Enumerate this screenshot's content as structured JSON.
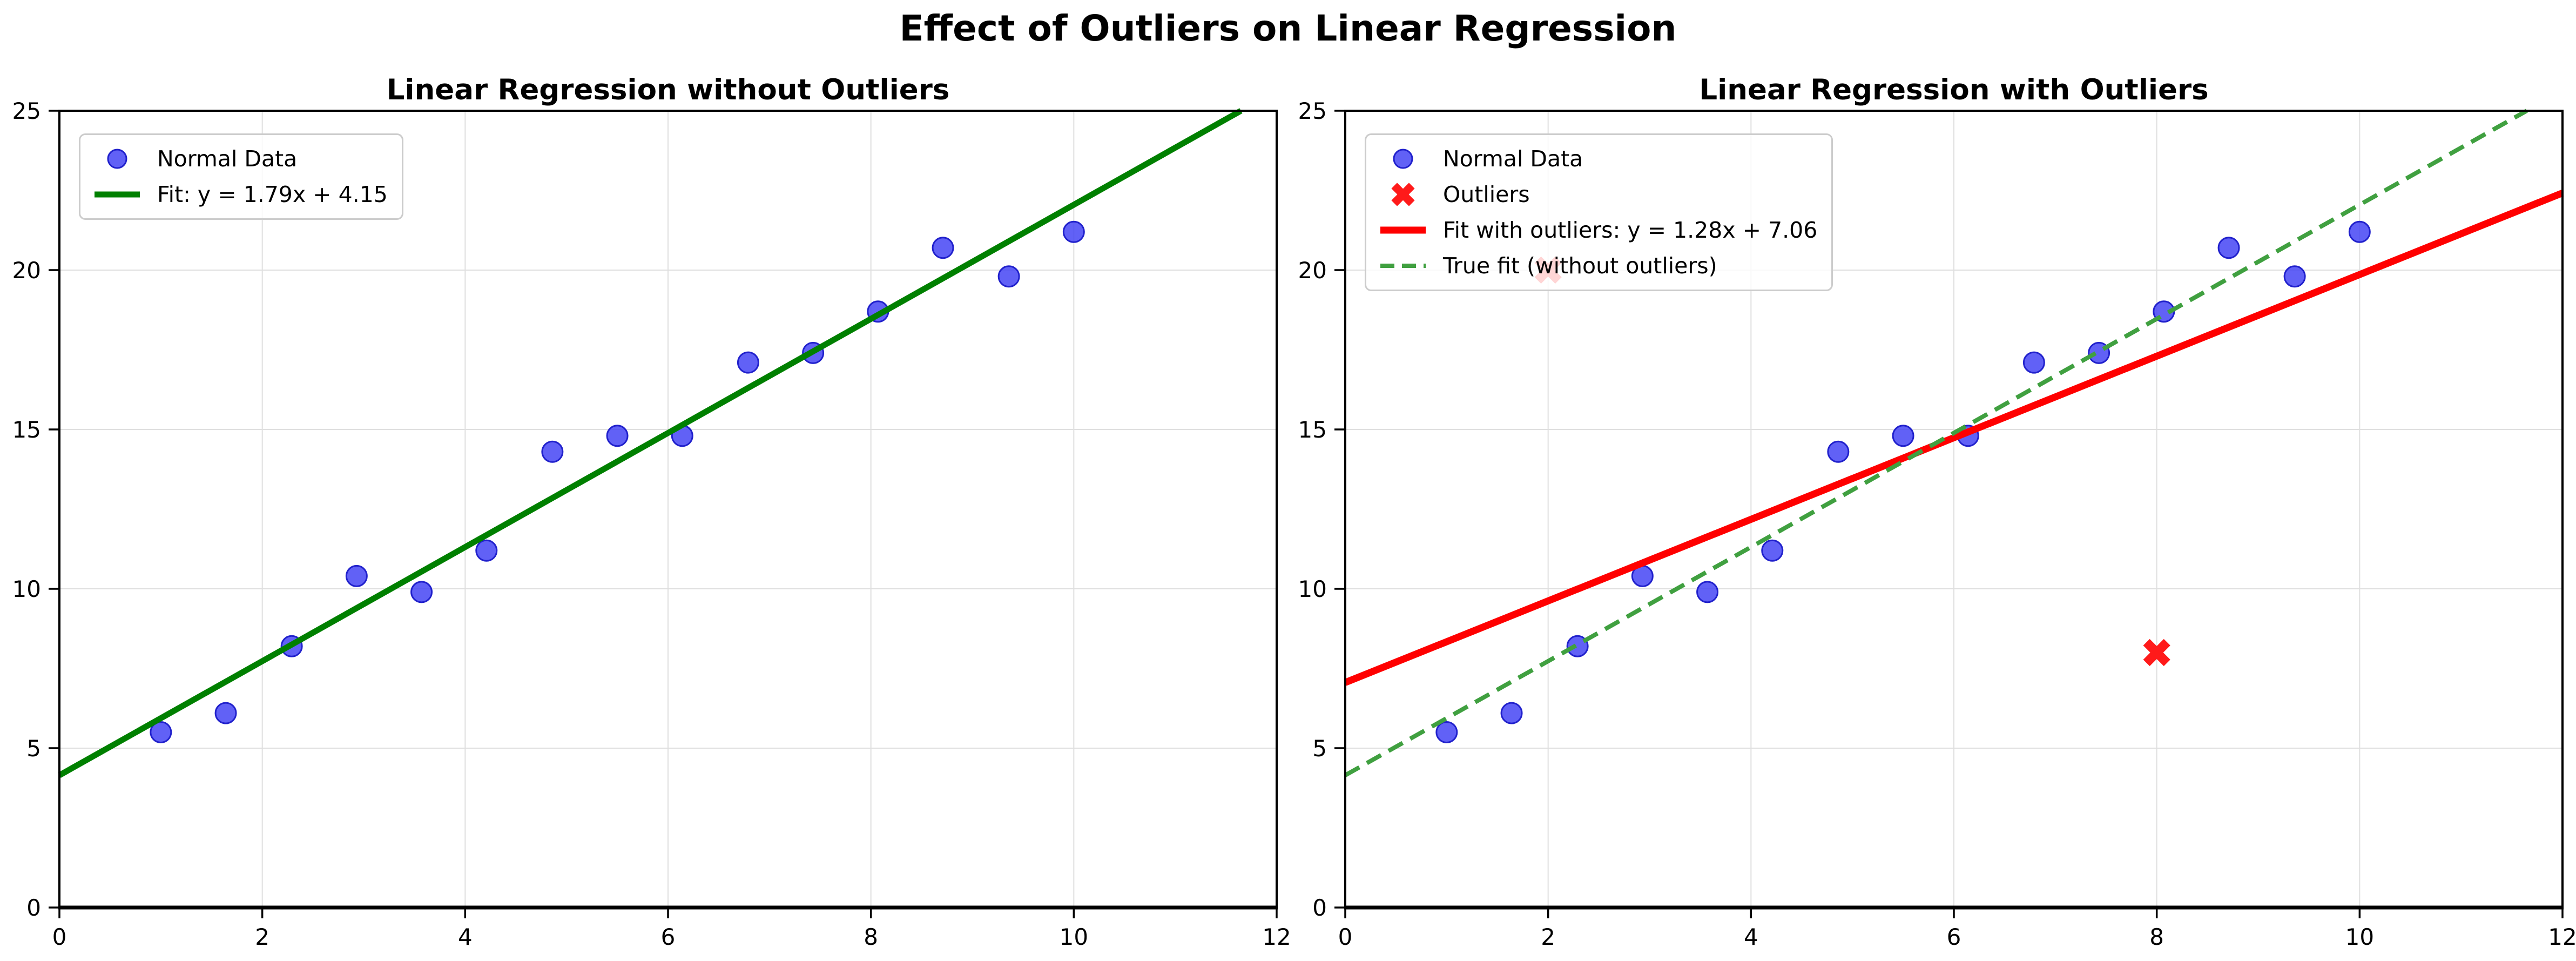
{
  "figure": {
    "title": "Effect of Outliers on Linear Regression",
    "background": "#ffffff",
    "text_color": "#000000"
  },
  "axes_style": {
    "spine_color": "#000000",
    "grid_color": "#dfdfdf",
    "tick_color": "#000000",
    "legend_border": "#cccccc",
    "legend_background": "rgba(255,255,255,0.82)"
  },
  "chart_data": [
    {
      "type": "scatter",
      "title": "Linear Regression without Outliers",
      "xlim": [
        0,
        12
      ],
      "ylim": [
        0,
        25
      ],
      "xticks": [
        0,
        2,
        4,
        6,
        8,
        10,
        12
      ],
      "yticks": [
        0,
        5,
        10,
        15,
        20,
        25
      ],
      "grid": true,
      "legend_position": "upper left",
      "series": [
        {
          "name": "Normal Data",
          "kind": "scatter",
          "marker": "circle",
          "fill": "#4545f5",
          "edge": "#2121cc",
          "x": [
            1.0,
            1.64,
            2.29,
            2.93,
            3.57,
            4.21,
            4.86,
            5.5,
            6.14,
            6.79,
            7.43,
            8.07,
            8.71,
            9.36,
            10.0
          ],
          "y": [
            5.5,
            6.1,
            8.2,
            10.4,
            9.9,
            11.2,
            14.3,
            14.8,
            14.8,
            17.1,
            17.4,
            18.7,
            20.7,
            19.8,
            21.2
          ]
        },
        {
          "name": "Fit: y = 1.79x + 4.15",
          "kind": "line",
          "style": "solid",
          "color": "#008000",
          "width": 11,
          "slope": 1.79,
          "intercept": 4.15
        }
      ]
    },
    {
      "type": "scatter",
      "title": "Linear Regression with Outliers",
      "xlim": [
        0,
        12
      ],
      "ylim": [
        0,
        25
      ],
      "xticks": [
        0,
        2,
        4,
        6,
        8,
        10,
        12
      ],
      "yticks": [
        0,
        5,
        10,
        15,
        20,
        25
      ],
      "grid": true,
      "legend_position": "upper left",
      "series": [
        {
          "name": "Normal Data",
          "kind": "scatter",
          "marker": "circle",
          "fill": "#4545f5",
          "edge": "#2121cc",
          "x": [
            1.0,
            1.64,
            2.29,
            2.93,
            3.57,
            4.21,
            4.86,
            5.5,
            6.14,
            6.79,
            7.43,
            8.07,
            8.71,
            9.36,
            10.0
          ],
          "y": [
            5.5,
            6.1,
            8.2,
            10.4,
            9.9,
            11.2,
            14.3,
            14.8,
            14.8,
            17.1,
            17.4,
            18.7,
            20.7,
            19.8,
            21.2
          ]
        },
        {
          "name": "Outliers",
          "kind": "scatter",
          "marker": "x",
          "fill": "#ff1a1a",
          "edge": "#ff1a1a",
          "x": [
            2,
            8
          ],
          "y": [
            20,
            8
          ]
        },
        {
          "name": "Fit with outliers: y = 1.28x + 7.06",
          "kind": "line",
          "style": "solid",
          "color": "#ff0000",
          "width": 13,
          "slope": 1.28,
          "intercept": 7.06
        },
        {
          "name": "True fit (without outliers)",
          "kind": "line",
          "style": "dashed",
          "color": "#40a040",
          "width": 8,
          "slope": 1.79,
          "intercept": 4.15
        }
      ]
    }
  ]
}
